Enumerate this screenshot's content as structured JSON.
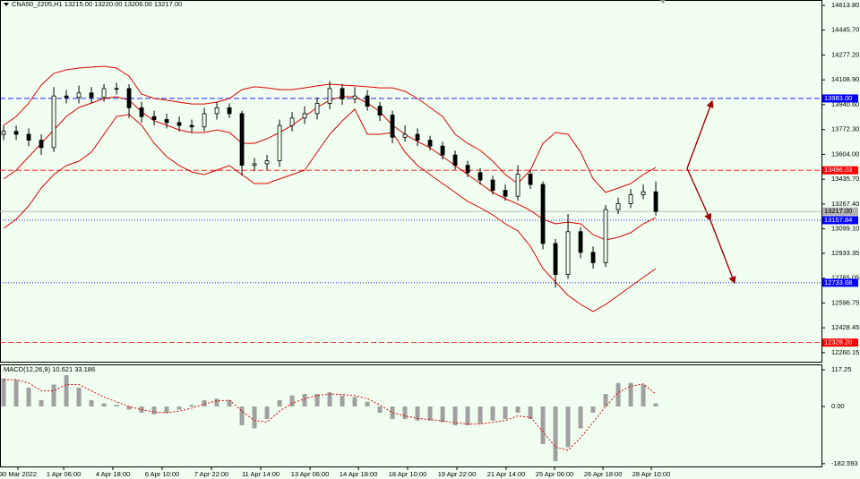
{
  "chart_data": [
    {
      "type": "candlestick",
      "title": "CNA50_2205,H1  13215.00 13220.00 13206.00 13217.00",
      "open": [
        13740,
        13760,
        13740,
        13700,
        13650,
        14000,
        13990,
        14020,
        13990,
        14050,
        14050,
        13920,
        13860,
        13840,
        13820,
        13800,
        13790,
        13880,
        13920,
        13880,
        13530,
        13540,
        13560,
        13800,
        13850,
        13880,
        13950,
        14050,
        13980,
        14000,
        13930,
        13870,
        13720,
        13740,
        13700,
        13660,
        13600,
        13530,
        13480,
        13430,
        13360,
        13320,
        13470,
        13400,
        13000,
        12790,
        13080,
        12940,
        12870,
        13230,
        13270,
        13330,
        13350
      ],
      "high": [
        13800,
        13800,
        13780,
        13740,
        14060,
        14040,
        14070,
        14060,
        14080,
        14090,
        14080,
        13960,
        13900,
        13880,
        13860,
        13840,
        13920,
        13960,
        13950,
        13900,
        13580,
        13600,
        13840,
        13890,
        13930,
        13990,
        14100,
        14080,
        14060,
        14040,
        13960,
        13900,
        13800,
        13780,
        13730,
        13690,
        13630,
        13560,
        13510,
        13460,
        13400,
        13530,
        13500,
        13420,
        13030,
        13200,
        13110,
        12980,
        13260,
        13310,
        13370,
        13400,
        13420
      ],
      "low": [
        13700,
        13700,
        13660,
        13600,
        13620,
        13950,
        13950,
        13950,
        13960,
        14010,
        13850,
        13820,
        13800,
        13780,
        13760,
        13750,
        13760,
        13840,
        13850,
        13460,
        13490,
        13500,
        13520,
        13760,
        13810,
        13840,
        13910,
        13940,
        13950,
        13900,
        13830,
        13680,
        13690,
        13660,
        13630,
        13570,
        13500,
        13450,
        13400,
        13330,
        13290,
        13290,
        13370,
        12960,
        12700,
        12760,
        12900,
        12830,
        12840,
        13200,
        13240,
        13300,
        13190
      ],
      "close": [
        13760,
        13740,
        13700,
        13650,
        14000,
        13990,
        14020,
        13990,
        14050,
        14050,
        13920,
        13860,
        13840,
        13820,
        13800,
        13790,
        13880,
        13920,
        13880,
        13530,
        13540,
        13560,
        13800,
        13850,
        13880,
        13950,
        14050,
        13980,
        14000,
        13930,
        13870,
        13720,
        13740,
        13700,
        13660,
        13600,
        13530,
        13480,
        13430,
        13360,
        13320,
        13470,
        13400,
        13000,
        12790,
        13080,
        12940,
        12870,
        13230,
        13270,
        13330,
        13350,
        13217
      ],
      "color": "#000000",
      "bands": {
        "color": "#e00000",
        "upper": [
          13801,
          13861,
          13952,
          14074,
          14153,
          14177,
          14189,
          14195,
          14201,
          14189,
          14134,
          14013,
          13983,
          13971,
          13958,
          13946,
          13946,
          13958,
          13983,
          14043,
          14062,
          14055,
          14043,
          14043,
          14055,
          14068,
          14080,
          14074,
          14068,
          14062,
          14055,
          14055,
          14031,
          13983,
          13922,
          13861,
          13740,
          13679,
          13631,
          13558,
          13467,
          13406,
          13497,
          13679,
          13752,
          13740,
          13619,
          13437,
          13346,
          13376,
          13406,
          13467,
          13516
        ],
        "middle": [
          13437,
          13497,
          13588,
          13679,
          13770,
          13861,
          13922,
          13952,
          13983,
          13995,
          13971,
          13892,
          13831,
          13801,
          13770,
          13752,
          13752,
          13770,
          13752,
          13679,
          13679,
          13710,
          13752,
          13801,
          13861,
          13922,
          13971,
          13995,
          13995,
          13952,
          13892,
          13801,
          13740,
          13691,
          13649,
          13588,
          13528,
          13467,
          13406,
          13346,
          13303,
          13267,
          13224,
          13164,
          13133,
          13145,
          13133,
          13060,
          13024,
          13042,
          13073,
          13133,
          13176
        ],
        "lower": [
          13103,
          13164,
          13255,
          13376,
          13467,
          13528,
          13558,
          13619,
          13740,
          13861,
          13874,
          13801,
          13679,
          13588,
          13528,
          13485,
          13467,
          13497,
          13528,
          13467,
          13406,
          13406,
          13437,
          13467,
          13497,
          13619,
          13740,
          13831,
          13910,
          13740,
          13740,
          13752,
          13619,
          13528,
          13467,
          13406,
          13346,
          13285,
          13242,
          13194,
          13133,
          13085,
          12981,
          12830,
          12739,
          12648,
          12587,
          12539,
          12587,
          12648,
          12709,
          12770,
          12830
        ]
      },
      "levels": [
        {
          "value": 13983,
          "label": "13983.00",
          "color": "#0000ff",
          "style": "dash",
          "label_color": "#ffffff"
        },
        {
          "value": 13496.03,
          "label": "13496.03",
          "color": "#ff0000",
          "style": "dash",
          "label_color": "#ffffff"
        },
        {
          "value": 13217,
          "label": "13217.00",
          "color": "#b0b0b0",
          "style": "solid",
          "label_color": "#000000"
        },
        {
          "value": 13157.84,
          "label": "13157.84",
          "color": "#0000ff",
          "style": "dot",
          "label_color": "#ffffff"
        },
        {
          "value": 12733.68,
          "label": "12733.68",
          "color": "#0000ff",
          "style": "dot",
          "label_color": "#ffffff"
        },
        {
          "value": 12328.2,
          "label": "12328.20",
          "color": "#ff0000",
          "style": "dash",
          "label_color": "#ffffff"
        }
      ],
      "xlim": [
        -0.29,
        65.21
      ],
      "xticks": [
        {
          "value": 1.14,
          "label": "30 Mar 2022"
        },
        {
          "value": 4.79,
          "label": "1 Apr 06:00"
        },
        {
          "value": 8.71,
          "label": "4 Apr 18:00"
        },
        {
          "value": 12.64,
          "label": "6 Apr 10:00"
        },
        {
          "value": 16.57,
          "label": "7 Apr 22:00"
        },
        {
          "value": 20.5,
          "label": "11 Apr 14:00"
        },
        {
          "value": 24.43,
          "label": "13 Apr 06:00"
        },
        {
          "value": 28.29,
          "label": "14 Apr 18:00"
        },
        {
          "value": 32.21,
          "label": "18 Apr 10:00"
        },
        {
          "value": 36.14,
          "label": "19 Apr 22:00"
        },
        {
          "value": 40.07,
          "label": "21 Apr 14:00"
        },
        {
          "value": 43.93,
          "label": "25 Apr 06:00"
        },
        {
          "value": 47.79,
          "label": "26 Apr 18:00"
        },
        {
          "value": 51.64,
          "label": "28 Apr 10:00"
        }
      ],
      "ylim": [
        12198.7,
        14650.2
      ],
      "yticks": [
        {
          "value": 14613.8,
          "label": "14613.80"
        },
        {
          "value": 14445.7,
          "label": "14445.70"
        },
        {
          "value": 14277.2,
          "label": "14277.20"
        },
        {
          "value": 14108.9,
          "label": "14108.90"
        },
        {
          "value": 13940.6,
          "label": "13940.60"
        },
        {
          "value": 13772.3,
          "label": "13772.30"
        },
        {
          "value": 13604,
          "label": "13604.00"
        },
        {
          "value": 13435.7,
          "label": "13435.70"
        },
        {
          "value": 13267.4,
          "label": "13267.40"
        },
        {
          "value": 13099.1,
          "label": "13099.10"
        },
        12933.35,
        12765.05,
        12596.75,
        12428.45,
        12260.15
      ]
    },
    {
      "type": "macd",
      "title": "MACD(12,26,9) 10.621 33.186",
      "values": [
        90,
        85,
        60,
        20,
        70,
        100,
        60,
        20,
        10,
        5,
        -10,
        -20,
        -25,
        -20,
        -10,
        5,
        20,
        25,
        20,
        -60,
        -70,
        -40,
        20,
        35,
        40,
        40,
        45,
        35,
        30,
        15,
        -20,
        -40,
        -40,
        -45,
        -45,
        -50,
        -60,
        -60,
        -55,
        -45,
        -40,
        -20,
        -40,
        -120,
        -175,
        -130,
        -70,
        -20,
        40,
        75,
        75,
        70,
        10
      ],
      "signal": [
        85,
        86,
        75,
        50,
        50,
        70,
        70,
        50,
        30,
        15,
        0,
        -10,
        -18,
        -20,
        -15,
        -5,
        8,
        18,
        20,
        -15,
        -45,
        -50,
        -15,
        10,
        25,
        35,
        40,
        38,
        35,
        25,
        5,
        -20,
        -30,
        -38,
        -42,
        -46,
        -52,
        -56,
        -56,
        -50,
        -45,
        -30,
        -35,
        -80,
        -130,
        -140,
        -100,
        -50,
        0,
        45,
        65,
        72,
        40
      ],
      "color": "#a0a0a0",
      "signal_color": "#e00000",
      "ylim": [
        -194.45,
        131.55
      ],
      "yticks": [
        117.25,
        {
          "value": 0,
          "label": "0.00"
        },
        -182.593
      ]
    }
  ]
}
